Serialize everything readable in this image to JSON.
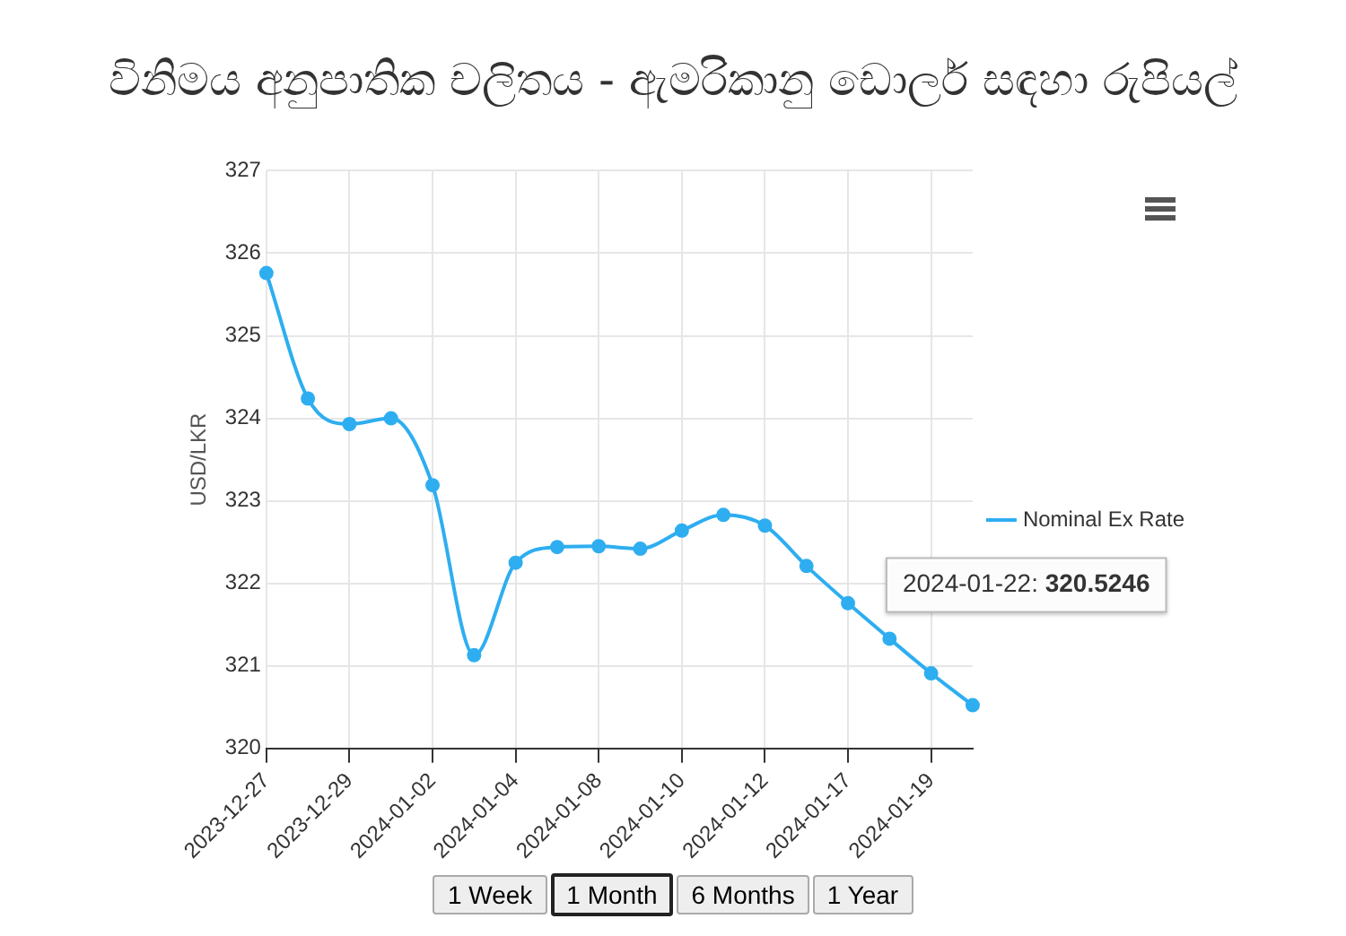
{
  "chart_data": {
    "type": "line",
    "title": "විනිමය අනුපාතික චලිතය - ඇමරිකානු ඩොලර් සඳහා රුපියල්",
    "ylabel": "USD/LKR",
    "categories": [
      "2023-12-27",
      null,
      "2023-12-29",
      null,
      "2024-01-02",
      null,
      "2024-01-04",
      null,
      "2024-01-08",
      null,
      "2024-01-10",
      null,
      "2024-01-12",
      null,
      "2024-01-17",
      null,
      "2024-01-19",
      null
    ],
    "series": [
      {
        "name": "Nominal Ex Rate",
        "color": "#2eaef0",
        "values": [
          325.76,
          324.24,
          323.93,
          324.0,
          323.19,
          321.13,
          322.25,
          322.44,
          322.45,
          322.42,
          322.64,
          322.83,
          322.7,
          322.21,
          321.76,
          321.33,
          320.91,
          320.5246
        ]
      }
    ],
    "ylim": [
      320,
      327
    ],
    "yticks": [
      320,
      321,
      322,
      323,
      324,
      325,
      326,
      327
    ],
    "grid": true,
    "legend": "right",
    "marker": "circle",
    "line_style": "solid",
    "annotations": [
      "2024-01-22: 320.5246",
      "1 Week",
      "1 Month",
      "6 Months",
      "1 Year"
    ]
  }
}
